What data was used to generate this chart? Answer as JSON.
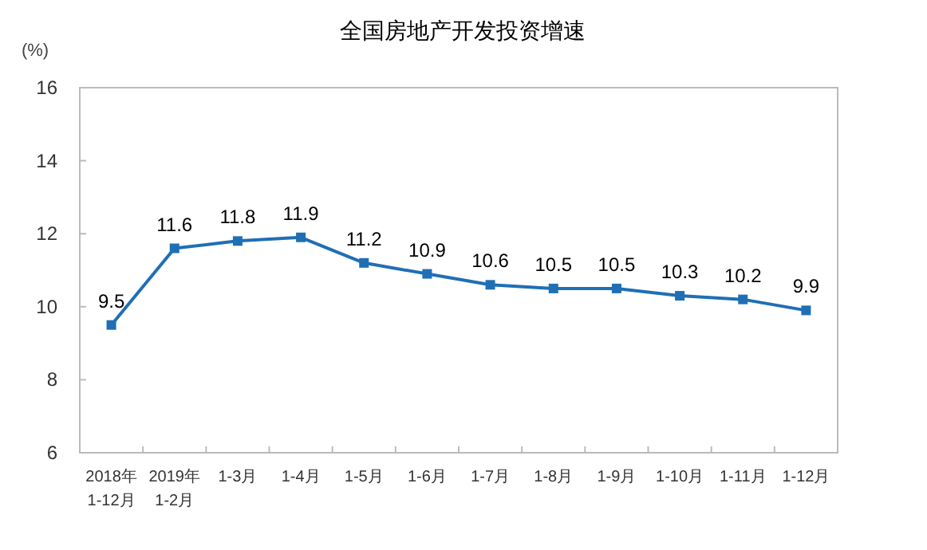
{
  "chart_data": {
    "type": "line",
    "title": "全国房地产开发投资增速",
    "ylabel": "(%)",
    "categories": [
      "2018年\n1-12月",
      "2019年\n1-2月",
      "1-3月",
      "1-4月",
      "1-5月",
      "1-6月",
      "1-7月",
      "1-8月",
      "1-9月",
      "1-10月",
      "1-11月",
      "1-12月"
    ],
    "series": [
      {
        "color": "#1f6fb5",
        "values": [
          9.5,
          11.6,
          11.8,
          11.9,
          11.2,
          10.9,
          10.6,
          10.5,
          10.5,
          10.3,
          10.2,
          9.9
        ]
      }
    ],
    "ylim": [
      6,
      16
    ],
    "yticks": [
      6,
      8,
      10,
      12,
      14,
      16
    ],
    "data_labels": true,
    "marker": "square",
    "line_style": "solid",
    "grid": false
  }
}
